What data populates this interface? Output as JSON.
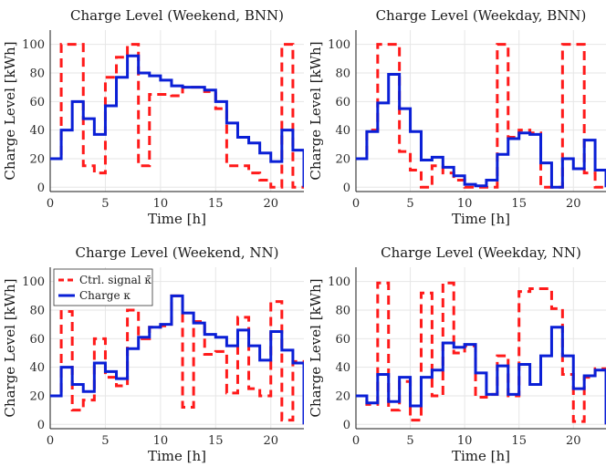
{
  "colors": {
    "signal": "#ff1a1a",
    "charge": "#0a1fd6",
    "grid": "#e6e6e6",
    "frame": "#1a1a1a"
  },
  "legend": {
    "signal_label": "Ctrl. signal κ̄",
    "charge_label": "Charge κ",
    "placement": "top-left"
  },
  "chart_data": [
    {
      "type": "line",
      "step": "post",
      "title": "Charge Level (Weekend, BNN)",
      "xlabel": "Time [h]",
      "ylabel": "Charge Level [kWh]",
      "xlim": [
        0,
        23
      ],
      "ylim": [
        -3,
        110
      ],
      "xticks": [
        0,
        5,
        10,
        15,
        20
      ],
      "yticks": [
        0,
        20,
        40,
        60,
        80,
        100
      ],
      "grid": true,
      "legend": false,
      "series": [
        {
          "role": "signal",
          "x": [
            0,
            1,
            2,
            3,
            4,
            5,
            6,
            7,
            8,
            9,
            10,
            11,
            12,
            13,
            14,
            15,
            16,
            17,
            18,
            19,
            20,
            21,
            22,
            23
          ],
          "values": [
            20,
            100,
            100,
            15,
            10,
            77,
            91,
            100,
            15,
            65,
            65,
            64,
            70,
            70,
            67,
            55,
            15,
            15,
            10,
            5,
            0,
            100,
            0,
            0
          ]
        },
        {
          "role": "charge",
          "x": [
            0,
            1,
            2,
            3,
            4,
            5,
            6,
            7,
            8,
            9,
            10,
            11,
            12,
            13,
            14,
            15,
            16,
            17,
            18,
            19,
            20,
            21,
            22,
            23
          ],
          "values": [
            20,
            40,
            60,
            48,
            37,
            57,
            77,
            92,
            80,
            78,
            75,
            71,
            70,
            70,
            68,
            60,
            45,
            35,
            31,
            24,
            18,
            40,
            26,
            0
          ]
        }
      ]
    },
    {
      "type": "line",
      "step": "post",
      "title": "Charge Level (Weekday, BNN)",
      "xlabel": "Time [h]",
      "ylabel": "Charge Level [kWh]",
      "xlim": [
        0,
        23
      ],
      "ylim": [
        -3,
        110
      ],
      "xticks": [
        0,
        5,
        10,
        15,
        20
      ],
      "yticks": [
        0,
        20,
        40,
        60,
        80,
        100
      ],
      "grid": true,
      "legend": false,
      "series": [
        {
          "role": "signal",
          "x": [
            0,
            1,
            2,
            3,
            4,
            5,
            6,
            7,
            8,
            9,
            10,
            11,
            12,
            13,
            14,
            15,
            16,
            17,
            18,
            19,
            20,
            21,
            22,
            23
          ],
          "values": [
            20,
            40,
            100,
            100,
            25,
            12,
            0,
            15,
            10,
            5,
            0,
            0,
            0,
            100,
            35,
            40,
            38,
            0,
            0,
            100,
            100,
            10,
            0,
            0
          ]
        },
        {
          "role": "charge",
          "x": [
            0,
            1,
            2,
            3,
            4,
            5,
            6,
            7,
            8,
            9,
            10,
            11,
            12,
            13,
            14,
            15,
            16,
            17,
            18,
            19,
            20,
            21,
            22,
            23
          ],
          "values": [
            20,
            39,
            59,
            79,
            55,
            39,
            19,
            21,
            14,
            8,
            2,
            1,
            5,
            23,
            34,
            38,
            37,
            17,
            0,
            20,
            13,
            33,
            12,
            0
          ]
        }
      ]
    },
    {
      "type": "line",
      "step": "post",
      "title": "Charge Level (Weekend, NN)",
      "xlabel": "Time [h]",
      "ylabel": "Charge Level [kWh]",
      "xlim": [
        0,
        23
      ],
      "ylim": [
        -3,
        110
      ],
      "xticks": [
        0,
        5,
        10,
        15,
        20
      ],
      "yticks": [
        0,
        20,
        40,
        60,
        80,
        100
      ],
      "grid": true,
      "legend": true,
      "series": [
        {
          "role": "signal",
          "x": [
            0,
            1,
            2,
            3,
            4,
            5,
            6,
            7,
            8,
            9,
            10,
            11,
            12,
            13,
            14,
            15,
            16,
            17,
            18,
            19,
            20,
            21,
            22,
            23
          ],
          "values": [
            20,
            79,
            10,
            17,
            60,
            33,
            27,
            80,
            60,
            68,
            69,
            90,
            12,
            72,
            49,
            51,
            22,
            75,
            25,
            20,
            86,
            3,
            44,
            0
          ]
        },
        {
          "role": "charge",
          "x": [
            0,
            1,
            2,
            3,
            4,
            5,
            6,
            7,
            8,
            9,
            10,
            11,
            12,
            13,
            14,
            15,
            16,
            17,
            18,
            19,
            20,
            21,
            22,
            23
          ],
          "values": [
            20,
            40,
            28,
            23,
            43,
            37,
            32,
            53,
            61,
            68,
            70,
            90,
            78,
            71,
            63,
            61,
            55,
            66,
            55,
            45,
            65,
            52,
            43,
            0
          ]
        }
      ]
    },
    {
      "type": "line",
      "step": "post",
      "title": "Charge Level (Weekday, NN)",
      "xlabel": "Time [h]",
      "ylabel": "Charge Level [kWh]",
      "xlim": [
        0,
        23
      ],
      "ylim": [
        -3,
        110
      ],
      "xticks": [
        0,
        5,
        10,
        15,
        20
      ],
      "yticks": [
        0,
        20,
        40,
        60,
        80,
        100
      ],
      "grid": true,
      "legend": false,
      "series": [
        {
          "role": "signal",
          "x": [
            0,
            1,
            2,
            3,
            4,
            5,
            6,
            7,
            8,
            9,
            10,
            11,
            12,
            13,
            14,
            15,
            16,
            17,
            18,
            19,
            20,
            21,
            22,
            23
          ],
          "values": [
            20,
            14,
            99,
            10,
            30,
            3,
            92,
            20,
            99,
            50,
            55,
            19,
            21,
            48,
            20,
            93,
            95,
            95,
            81,
            35,
            2,
            33,
            39,
            0
          ]
        },
        {
          "role": "charge",
          "x": [
            0,
            1,
            2,
            3,
            4,
            5,
            6,
            7,
            8,
            9,
            10,
            11,
            12,
            13,
            14,
            15,
            16,
            17,
            18,
            19,
            20,
            21,
            22,
            23
          ],
          "values": [
            20,
            15,
            35,
            16,
            33,
            13,
            33,
            38,
            57,
            54,
            56,
            36,
            21,
            41,
            21,
            42,
            28,
            48,
            68,
            48,
            25,
            34,
            38,
            0
          ]
        }
      ]
    }
  ]
}
